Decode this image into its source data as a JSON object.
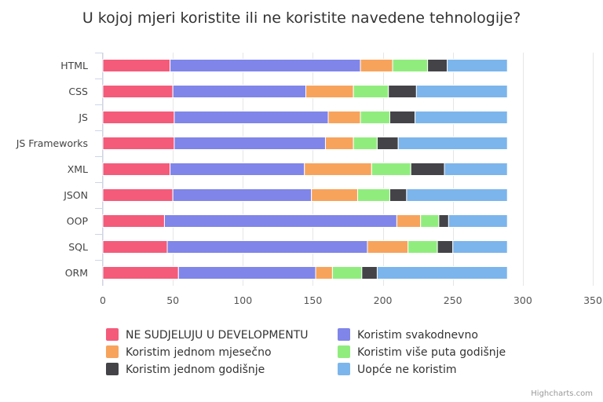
{
  "chart_data": {
    "type": "bar",
    "orientation": "horizontal",
    "stacked": true,
    "title": "U kojoj mjeri koristite ili ne koristite navedene tehnologije?",
    "categories": [
      "HTML",
      "CSS",
      "JS",
      "JS Frameworks",
      "XML",
      "JSON",
      "OOP",
      "SQL",
      "ORM"
    ],
    "series": [
      {
        "name": "NE SUDJELUJU U DEVELOPMENTU",
        "color": "#f45b7a",
        "values": [
          48,
          50,
          51,
          51,
          48,
          50,
          44,
          46,
          54
        ]
      },
      {
        "name": "Koristim svakodnevno",
        "color": "#8085e9",
        "values": [
          136,
          95,
          110,
          108,
          96,
          99,
          166,
          143,
          98
        ]
      },
      {
        "name": "Koristim jednom mjesečno",
        "color": "#f7a35c",
        "values": [
          23,
          34,
          23,
          20,
          48,
          33,
          17,
          29,
          12
        ]
      },
      {
        "name": "Koristim više puta godišnje",
        "color": "#90ed7d",
        "values": [
          25,
          25,
          21,
          17,
          28,
          23,
          13,
          21,
          21
        ]
      },
      {
        "name": "Koristim jednom godišnje",
        "color": "#434348",
        "values": [
          14,
          20,
          18,
          15,
          24,
          12,
          7,
          11,
          11
        ]
      },
      {
        "name": "Uopće ne koristim",
        "color": "#7cb5ec",
        "values": [
          43,
          65,
          66,
          78,
          45,
          72,
          42,
          39,
          93
        ]
      }
    ],
    "xlim": [
      0,
      350
    ],
    "ticks": [
      0,
      50,
      100,
      150,
      200,
      250,
      300,
      350
    ],
    "grid": true,
    "legend_position": "bottom"
  },
  "credits": "Highcharts.com"
}
